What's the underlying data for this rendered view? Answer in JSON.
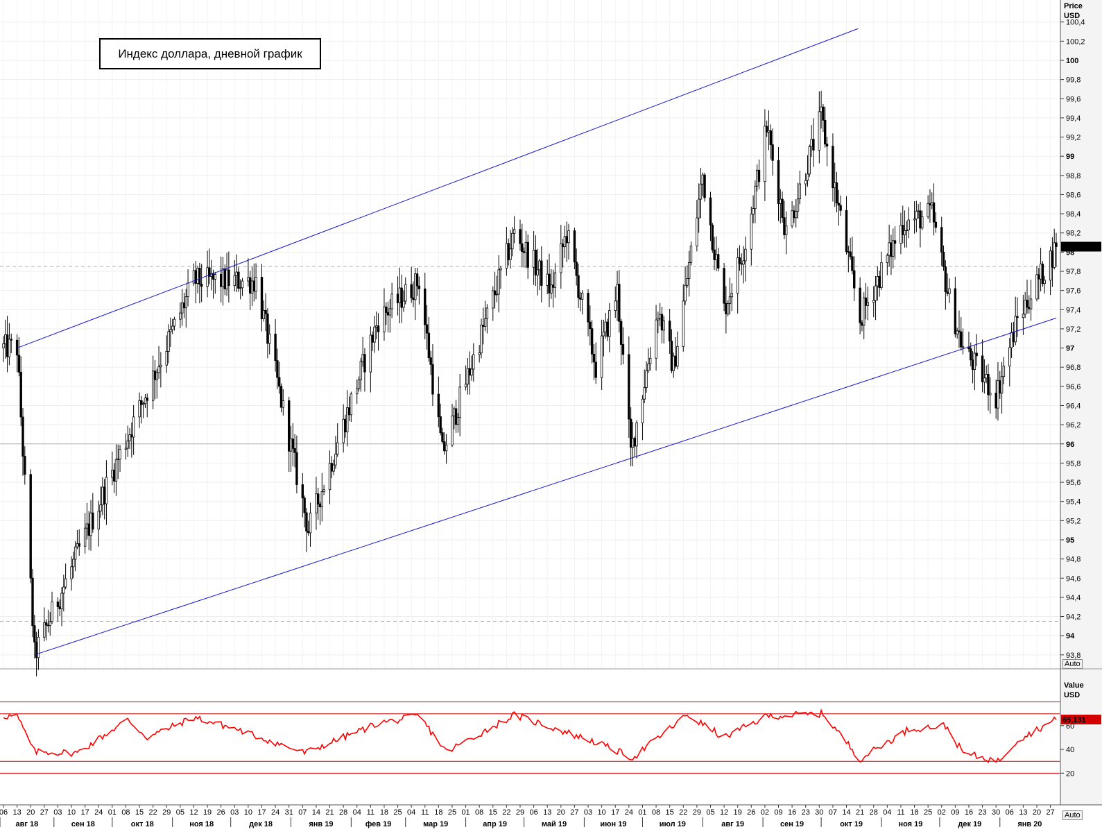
{
  "title": "Индекс доллара, дневной график",
  "price_axis": {
    "label": "Price",
    "unit": "USD",
    "auto": "Auto",
    "current": "98,057"
  },
  "rsi_axis": {
    "label": "Value",
    "unit": "USD",
    "auto": "Auto",
    "current": "65,131"
  },
  "colors": {
    "candle": "#000000",
    "channel": "#1414d2",
    "rsi": "#ff0000",
    "level": "#d40000",
    "grid": "#eeeeee",
    "axis_bg": "#f4f4f4"
  },
  "chart_data": [
    {
      "type": "candlestick",
      "title": "Индекс доллара, дневной график",
      "ylabel": "Price USD",
      "ylim": [
        93.65,
        100.6
      ],
      "ticks": [
        {
          "v": 93.8,
          "label": "93,8"
        },
        {
          "v": 94,
          "label": "94"
        },
        {
          "v": 94.2,
          "label": "94,2"
        },
        {
          "v": 94.4,
          "label": "94,4"
        },
        {
          "v": 94.6,
          "label": "94,6"
        },
        {
          "v": 94.8,
          "label": "94,8"
        },
        {
          "v": 95,
          "label": "95"
        },
        {
          "v": 95.2,
          "label": "95,2"
        },
        {
          "v": 95.4,
          "label": "95,4"
        },
        {
          "v": 95.6,
          "label": "95,6"
        },
        {
          "v": 95.8,
          "label": "95,8"
        },
        {
          "v": 96,
          "label": "96"
        },
        {
          "v": 96.2,
          "label": "96,2"
        },
        {
          "v": 96.4,
          "label": "96,4"
        },
        {
          "v": 96.6,
          "label": "96,6"
        },
        {
          "v": 96.8,
          "label": "96,8"
        },
        {
          "v": 97,
          "label": "97"
        },
        {
          "v": 97.2,
          "label": "97,2"
        },
        {
          "v": 97.4,
          "label": "97,4"
        },
        {
          "v": 97.6,
          "label": "97,6"
        },
        {
          "v": 97.8,
          "label": "97,8"
        },
        {
          "v": 98,
          "label": "98"
        },
        {
          "v": 98.2,
          "label": "98,2"
        },
        {
          "v": 98.4,
          "label": "98,4"
        },
        {
          "v": 98.6,
          "label": "98,6"
        },
        {
          "v": 98.8,
          "label": "98,8"
        },
        {
          "v": 99,
          "label": "99"
        },
        {
          "v": 99.2,
          "label": "99,2"
        },
        {
          "v": 99.4,
          "label": "99,4"
        },
        {
          "v": 99.6,
          "label": "99,6"
        },
        {
          "v": 99.8,
          "label": "99,8"
        },
        {
          "v": 100,
          "label": "100"
        },
        {
          "v": 100.2,
          "label": "100,2"
        },
        {
          "v": 100.4,
          "label": "100,4"
        }
      ],
      "bold_ticks": [
        94,
        95,
        96,
        97,
        98,
        99,
        100
      ],
      "hlines": [
        {
          "v": 96.0,
          "style": "solid"
        },
        {
          "v": 97.85,
          "style": "dashed"
        },
        {
          "v": 94.15,
          "style": "dashed"
        }
      ],
      "channel": {
        "upper": [
          {
            "date": "2018-08-13",
            "v": 97.0
          },
          {
            "date": "2018-11-12",
            "v": 97.7
          }
        ],
        "lower": [
          {
            "date": "2018-08-22",
            "v": 93.8
          },
          {
            "date": "2019-06-25",
            "v": 95.85
          }
        ]
      },
      "anchors": [
        {
          "date": "2018-08-13",
          "v": 97.0
        },
        {
          "date": "2018-08-22",
          "v": 93.8
        },
        {
          "date": "2018-11-12",
          "v": 97.7
        },
        {
          "date": "2018-12-14",
          "v": 97.7
        },
        {
          "date": "2019-01-10",
          "v": 95.1
        },
        {
          "date": "2019-02-15",
          "v": 97.3
        },
        {
          "date": "2019-03-08",
          "v": 97.7
        },
        {
          "date": "2019-03-20",
          "v": 95.9
        },
        {
          "date": "2019-04-26",
          "v": 98.2
        },
        {
          "date": "2019-05-15",
          "v": 97.6
        },
        {
          "date": "2019-05-23",
          "v": 98.2
        },
        {
          "date": "2019-06-07",
          "v": 96.8
        },
        {
          "date": "2019-06-18",
          "v": 97.6
        },
        {
          "date": "2019-06-25",
          "v": 95.9
        },
        {
          "date": "2019-07-09",
          "v": 97.4
        },
        {
          "date": "2019-07-17",
          "v": 96.8
        },
        {
          "date": "2019-08-01",
          "v": 98.8
        },
        {
          "date": "2019-08-12",
          "v": 97.4
        },
        {
          "date": "2019-08-23",
          "v": 98.1
        },
        {
          "date": "2019-09-03",
          "v": 99.3
        },
        {
          "date": "2019-09-13",
          "v": 98.2
        },
        {
          "date": "2019-10-01",
          "v": 99.4
        },
        {
          "date": "2019-10-21",
          "v": 97.3
        },
        {
          "date": "2019-11-12",
          "v": 98.3
        },
        {
          "date": "2019-11-27",
          "v": 98.4
        },
        {
          "date": "2019-12-06",
          "v": 97.5
        },
        {
          "date": "2019-12-13",
          "v": 97.0
        },
        {
          "date": "2019-12-30",
          "v": 96.5
        },
        {
          "date": "2020-01-10",
          "v": 97.3
        },
        {
          "date": "2020-01-30",
          "v": 98.05
        }
      ],
      "last": 98.057
    },
    {
      "type": "line",
      "ylabel": "Value USD",
      "ylim": [
        5,
        85
      ],
      "ticks": [
        {
          "v": 20,
          "label": "20"
        },
        {
          "v": 40,
          "label": "40"
        },
        {
          "v": 60,
          "label": "60"
        }
      ],
      "levels": [
        80,
        70,
        30,
        20
      ],
      "series": [
        {
          "anchors": [
            {
              "date": "2018-08-13",
              "v": 68
            },
            {
              "date": "2018-08-22",
              "v": 38
            },
            {
              "date": "2018-09-13",
              "v": 37
            },
            {
              "date": "2018-10-09",
              "v": 65
            },
            {
              "date": "2018-10-19",
              "v": 50
            },
            {
              "date": "2018-11-12",
              "v": 67
            },
            {
              "date": "2018-12-04",
              "v": 57
            },
            {
              "date": "2019-01-08",
              "v": 37
            },
            {
              "date": "2019-02-15",
              "v": 62
            },
            {
              "date": "2019-03-08",
              "v": 68
            },
            {
              "date": "2019-03-22",
              "v": 38
            },
            {
              "date": "2019-04-26",
              "v": 69
            },
            {
              "date": "2019-06-07",
              "v": 46
            },
            {
              "date": "2019-06-26",
              "v": 33
            },
            {
              "date": "2019-07-24",
              "v": 69
            },
            {
              "date": "2019-08-12",
              "v": 50
            },
            {
              "date": "2019-09-03",
              "v": 68
            },
            {
              "date": "2019-10-02",
              "v": 70
            },
            {
              "date": "2019-10-21",
              "v": 32
            },
            {
              "date": "2019-11-15",
              "v": 57
            },
            {
              "date": "2019-12-04",
              "v": 60
            },
            {
              "date": "2019-12-13",
              "v": 37
            },
            {
              "date": "2019-12-31",
              "v": 30
            },
            {
              "date": "2020-01-10",
              "v": 48
            },
            {
              "date": "2020-01-30",
              "v": 65.131
            }
          ],
          "last": 65.131
        }
      ]
    }
  ],
  "x_axis": {
    "start": "2018-08-06",
    "end": "2020-01-30",
    "day_ticks": [
      {
        "date": "2018-08-06",
        "label": "06"
      },
      {
        "date": "2018-08-13",
        "label": "13"
      },
      {
        "date": "2018-08-20",
        "label": "20"
      },
      {
        "date": "2018-08-27",
        "label": "27"
      },
      {
        "date": "2018-09-03",
        "label": "03"
      },
      {
        "date": "2018-09-10",
        "label": "10"
      },
      {
        "date": "2018-09-17",
        "label": "17"
      },
      {
        "date": "2018-09-24",
        "label": "24"
      },
      {
        "date": "2018-10-01",
        "label": "01"
      },
      {
        "date": "2018-10-08",
        "label": "08"
      },
      {
        "date": "2018-10-15",
        "label": "15"
      },
      {
        "date": "2018-10-22",
        "label": "22"
      },
      {
        "date": "2018-10-29",
        "label": "29"
      },
      {
        "date": "2018-11-05",
        "label": "05"
      },
      {
        "date": "2018-11-12",
        "label": "12"
      },
      {
        "date": "2018-11-19",
        "label": "19"
      },
      {
        "date": "2018-11-26",
        "label": "26"
      },
      {
        "date": "2018-12-03",
        "label": "03"
      },
      {
        "date": "2018-12-10",
        "label": "10"
      },
      {
        "date": "2018-12-17",
        "label": "17"
      },
      {
        "date": "2018-12-24",
        "label": "24"
      },
      {
        "date": "2018-12-31",
        "label": "31"
      },
      {
        "date": "2019-01-07",
        "label": "07"
      },
      {
        "date": "2019-01-14",
        "label": "14"
      },
      {
        "date": "2019-01-21",
        "label": "21"
      },
      {
        "date": "2019-01-28",
        "label": "28"
      },
      {
        "date": "2019-02-04",
        "label": "04"
      },
      {
        "date": "2019-02-11",
        "label": "11"
      },
      {
        "date": "2019-02-18",
        "label": "18"
      },
      {
        "date": "2019-02-25",
        "label": "25"
      },
      {
        "date": "2019-03-04",
        "label": "04"
      },
      {
        "date": "2019-03-11",
        "label": "11"
      },
      {
        "date": "2019-03-18",
        "label": "18"
      },
      {
        "date": "2019-03-25",
        "label": "25"
      },
      {
        "date": "2019-04-01",
        "label": "01"
      },
      {
        "date": "2019-04-08",
        "label": "08"
      },
      {
        "date": "2019-04-15",
        "label": "15"
      },
      {
        "date": "2019-04-22",
        "label": "22"
      },
      {
        "date": "2019-04-29",
        "label": "29"
      },
      {
        "date": "2019-05-06",
        "label": "06"
      },
      {
        "date": "2019-05-13",
        "label": "13"
      },
      {
        "date": "2019-05-20",
        "label": "20"
      },
      {
        "date": "2019-05-27",
        "label": "27"
      },
      {
        "date": "2019-06-03",
        "label": "03"
      },
      {
        "date": "2019-06-10",
        "label": "10"
      },
      {
        "date": "2019-06-17",
        "label": "17"
      },
      {
        "date": "2019-06-24",
        "label": "24"
      },
      {
        "date": "2019-07-01",
        "label": "01"
      },
      {
        "date": "2019-07-08",
        "label": "08"
      },
      {
        "date": "2019-07-15",
        "label": "15"
      },
      {
        "date": "2019-07-22",
        "label": "22"
      },
      {
        "date": "2019-07-29",
        "label": "29"
      },
      {
        "date": "2019-08-05",
        "label": "05"
      },
      {
        "date": "2019-08-12",
        "label": "12"
      },
      {
        "date": "2019-08-19",
        "label": "19"
      },
      {
        "date": "2019-08-26",
        "label": "26"
      },
      {
        "date": "2019-09-02",
        "label": "02"
      },
      {
        "date": "2019-09-09",
        "label": "09"
      },
      {
        "date": "2019-09-16",
        "label": "16"
      },
      {
        "date": "2019-09-23",
        "label": "23"
      },
      {
        "date": "2019-09-30",
        "label": "30"
      },
      {
        "date": "2019-10-07",
        "label": "07"
      },
      {
        "date": "2019-10-14",
        "label": "14"
      },
      {
        "date": "2019-10-21",
        "label": "21"
      },
      {
        "date": "2019-10-28",
        "label": "28"
      },
      {
        "date": "2019-11-04",
        "label": "04"
      },
      {
        "date": "2019-11-11",
        "label": "11"
      },
      {
        "date": "2019-11-18",
        "label": "18"
      },
      {
        "date": "2019-11-25",
        "label": "25"
      },
      {
        "date": "2019-12-02",
        "label": "02"
      },
      {
        "date": "2019-12-09",
        "label": "09"
      },
      {
        "date": "2019-12-16",
        "label": "16"
      },
      {
        "date": "2019-12-23",
        "label": "23"
      },
      {
        "date": "2019-12-30",
        "label": "30"
      },
      {
        "date": "2020-01-06",
        "label": "06"
      },
      {
        "date": "2020-01-13",
        "label": "13"
      },
      {
        "date": "2020-01-20",
        "label": "20"
      },
      {
        "date": "2020-01-27",
        "label": "27"
      }
    ],
    "months": [
      {
        "date": "2018-08-01",
        "label": "авг 18"
      },
      {
        "date": "2018-09-01",
        "label": "сен 18"
      },
      {
        "date": "2018-10-01",
        "label": "окт 18"
      },
      {
        "date": "2018-11-01",
        "label": "ноя 18"
      },
      {
        "date": "2018-12-01",
        "label": "дек 18"
      },
      {
        "date": "2019-01-01",
        "label": "янв 19"
      },
      {
        "date": "2019-02-01",
        "label": "фев 19"
      },
      {
        "date": "2019-03-01",
        "label": "мар 19"
      },
      {
        "date": "2019-04-01",
        "label": "апр 19"
      },
      {
        "date": "2019-05-01",
        "label": "май 19"
      },
      {
        "date": "2019-06-01",
        "label": "июн 19"
      },
      {
        "date": "2019-07-01",
        "label": "июл 19"
      },
      {
        "date": "2019-08-01",
        "label": "авг 19"
      },
      {
        "date": "2019-09-01",
        "label": "сен 19"
      },
      {
        "date": "2019-10-01",
        "label": "окт 19"
      },
      {
        "date": "2019-11-01",
        "label": "ноя 19"
      },
      {
        "date": "2019-12-01",
        "label": "дек 19"
      },
      {
        "date": "2020-01-01",
        "label": "янв 20"
      }
    ]
  }
}
